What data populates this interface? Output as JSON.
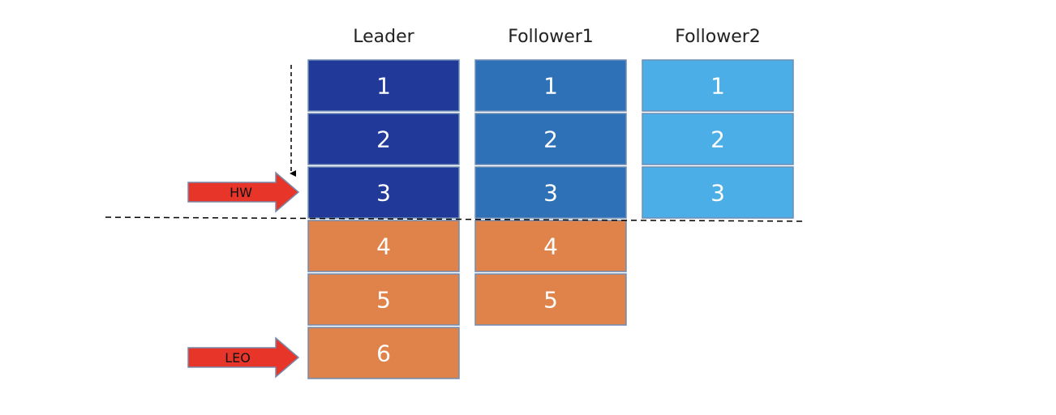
{
  "columns": [
    {
      "title": "Leader",
      "cells": [
        1,
        2,
        3,
        4,
        5,
        6
      ]
    },
    {
      "title": "Follower1",
      "cells": [
        1,
        2,
        3,
        4,
        5
      ]
    },
    {
      "title": "Follower2",
      "cells": [
        1,
        2,
        3
      ]
    }
  ],
  "markers": [
    {
      "label": "HW"
    },
    {
      "label": "LEO"
    }
  ]
}
